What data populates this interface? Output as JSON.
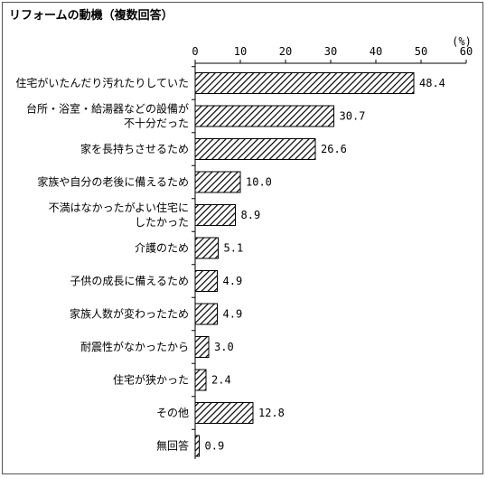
{
  "chart_data": {
    "type": "bar",
    "orientation": "horizontal",
    "title": "リフォームの動機（複数回答）",
    "unit": "(%)",
    "xlim": [
      0,
      60
    ],
    "ticks": [
      0,
      10,
      20,
      30,
      40,
      50,
      60
    ],
    "grid": false,
    "legend": "none",
    "bar_fill": "diagonal-hatch",
    "categories": [
      [
        "住宅がいたんだり汚れたりしていた"
      ],
      [
        "台所・浴室・給湯器などの設備が",
        "不十分だった"
      ],
      [
        "家を長持ちさせるため"
      ],
      [
        "家族や自分の老後に備えるため"
      ],
      [
        "不満はなかったがよい住宅に",
        "したかった"
      ],
      [
        "介護のため"
      ],
      [
        "子供の成長に備えるため"
      ],
      [
        "家族人数が変わったため"
      ],
      [
        "耐震性がなかったから"
      ],
      [
        "住宅が狭かった"
      ],
      [
        "その他"
      ],
      [
        "無回答"
      ]
    ],
    "values": [
      48.4,
      30.7,
      26.6,
      10.0,
      8.9,
      5.1,
      4.9,
      4.9,
      3.0,
      2.4,
      12.8,
      0.9
    ],
    "value_labels": [
      "48.4",
      "30.7",
      "26.6",
      "10.0",
      "8.9",
      "5.1",
      "4.9",
      "4.9",
      "3.0",
      "2.4",
      "12.8",
      "0.9"
    ]
  }
}
